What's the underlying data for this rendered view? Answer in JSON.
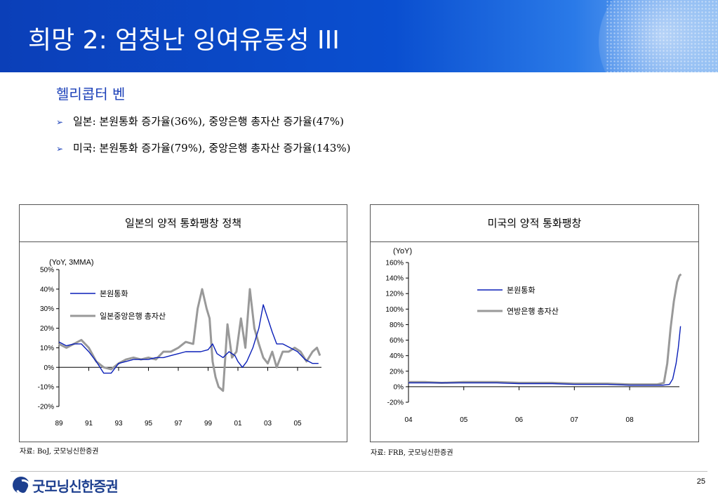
{
  "slide": {
    "title": "희망 2: 엄청난 잉여유동성 III",
    "subtitle": "헬리콥터 벤",
    "bullets": [
      "일본: 본원통화 증가율(36%), 중앙은행 총자산 증가율(47%)",
      "미국: 본원통화 증가율(79%), 중앙은행 총자산 증가율(143%)"
    ],
    "page_number": "25",
    "logo_text": "굿모닝신한증권",
    "colors": {
      "header": "#0a4fd0",
      "series_blue": "#0a1fb8",
      "series_gray": "#999999",
      "accent": "#1a3fb8"
    }
  },
  "chart_data": [
    {
      "type": "line",
      "panel_title": "일본의 양적 통화팽창 정책",
      "unit_note": "(YoY, 3MMA)",
      "source": "자료: BoJ, 굿모닝신한증권",
      "ylim": [
        -20,
        50
      ],
      "yticks": [
        -20,
        -10,
        0,
        10,
        20,
        30,
        40,
        50
      ],
      "ytick_labels": [
        "-20%",
        "-10%",
        "0%",
        "10%",
        "20%",
        "30%",
        "40%",
        "50%"
      ],
      "xlim": [
        1989,
        2006.6
      ],
      "xticks": [
        1989,
        1991,
        1993,
        1995,
        1997,
        1999,
        2001,
        2003,
        2005
      ],
      "xtick_labels": [
        "89",
        "91",
        "93",
        "95",
        "97",
        "99",
        "01",
        "03",
        "05"
      ],
      "legend_position": "upper-left",
      "series": [
        {
          "name": "본원통화",
          "color": "#0a1fb8",
          "x": [
            1989.0,
            1989.5,
            1990.0,
            1990.5,
            1991.0,
            1991.5,
            1992.0,
            1992.5,
            1993.0,
            1993.5,
            1994.0,
            1994.5,
            1995.0,
            1995.5,
            1996.0,
            1996.5,
            1997.0,
            1997.5,
            1998.0,
            1998.5,
            1999.0,
            1999.3,
            1999.6,
            2000.0,
            2000.4,
            2000.8,
            2001.0,
            2001.3,
            2001.6,
            2002.0,
            2002.4,
            2002.7,
            2003.0,
            2003.3,
            2003.6,
            2004.0,
            2004.5,
            2005.0,
            2005.5,
            2006.0,
            2006.4
          ],
          "y": [
            13,
            11,
            12,
            12,
            8,
            3,
            -3,
            -3,
            2,
            3,
            4,
            4,
            4,
            5,
            5,
            6,
            7,
            8,
            8,
            8,
            9,
            12,
            7,
            5,
            8,
            6,
            3,
            0,
            3,
            10,
            20,
            32,
            25,
            18,
            12,
            12,
            10,
            8,
            4,
            2,
            2
          ]
        },
        {
          "name": "일본중앙은행 총자산",
          "color": "#999999",
          "x": [
            1989.0,
            1989.5,
            1990.0,
            1990.5,
            1991.0,
            1991.5,
            1992.0,
            1992.5,
            1993.0,
            1993.5,
            1994.0,
            1994.5,
            1995.0,
            1995.5,
            1996.0,
            1996.5,
            1997.0,
            1997.5,
            1998.0,
            1998.3,
            1998.6,
            1998.9,
            1999.1,
            1999.3,
            1999.5,
            1999.7,
            2000.0,
            2000.3,
            2000.6,
            2000.9,
            2001.2,
            2001.5,
            2001.8,
            2002.1,
            2002.4,
            2002.7,
            2003.0,
            2003.3,
            2003.6,
            2004.0,
            2004.4,
            2004.8,
            2005.2,
            2005.6,
            2006.0,
            2006.3,
            2006.5
          ],
          "y": [
            12,
            10,
            12,
            14,
            10,
            3,
            0,
            -1,
            2,
            4,
            5,
            4,
            5,
            4,
            8,
            8,
            10,
            13,
            12,
            30,
            40,
            30,
            25,
            3,
            -5,
            -10,
            -12,
            22,
            5,
            8,
            25,
            10,
            40,
            20,
            12,
            5,
            2,
            8,
            0,
            8,
            8,
            10,
            8,
            3,
            8,
            10,
            6
          ]
        }
      ]
    },
    {
      "type": "line",
      "panel_title": "미국의 양적 통화팽창",
      "unit_note": "(YoY)",
      "source": "자료: FRB, 굿모닝신한증권",
      "ylim": [
        -20,
        160
      ],
      "yticks": [
        -20,
        0,
        20,
        40,
        60,
        80,
        100,
        120,
        140,
        160
      ],
      "ytick_labels": [
        "-20%",
        "0%",
        "20%",
        "40%",
        "60%",
        "80%",
        "100%",
        "120%",
        "140%",
        "160%"
      ],
      "xlim": [
        2004.0,
        2008.9
      ],
      "xticks": [
        2004,
        2005,
        2006,
        2007,
        2008
      ],
      "xtick_labels": [
        "04",
        "05",
        "06",
        "07",
        "08"
      ],
      "legend_position": "upper-right",
      "series": [
        {
          "name": "본원통화",
          "color": "#0a1fb8",
          "x": [
            2004.0,
            2004.3,
            2004.6,
            2005.0,
            2005.3,
            2005.6,
            2006.0,
            2006.3,
            2006.6,
            2007.0,
            2007.3,
            2007.6,
            2008.0,
            2008.3,
            2008.6,
            2008.72,
            2008.78,
            2008.84,
            2008.88,
            2008.92
          ],
          "y": [
            5,
            5,
            5,
            5,
            5,
            5,
            4,
            4,
            4,
            3,
            3,
            3,
            2,
            2,
            2,
            3,
            10,
            30,
            50,
            78
          ]
        },
        {
          "name": "연방은행 총자산",
          "color": "#999999",
          "x": [
            2004.0,
            2004.3,
            2004.6,
            2005.0,
            2005.3,
            2005.6,
            2006.0,
            2006.3,
            2006.6,
            2007.0,
            2007.3,
            2007.6,
            2008.0,
            2008.3,
            2008.5,
            2008.62,
            2008.68,
            2008.74,
            2008.8,
            2008.86,
            2008.9,
            2008.93
          ],
          "y": [
            6,
            6,
            5,
            6,
            6,
            6,
            5,
            5,
            5,
            4,
            4,
            4,
            3,
            3,
            3,
            5,
            30,
            75,
            110,
            135,
            143,
            145
          ]
        }
      ]
    }
  ]
}
